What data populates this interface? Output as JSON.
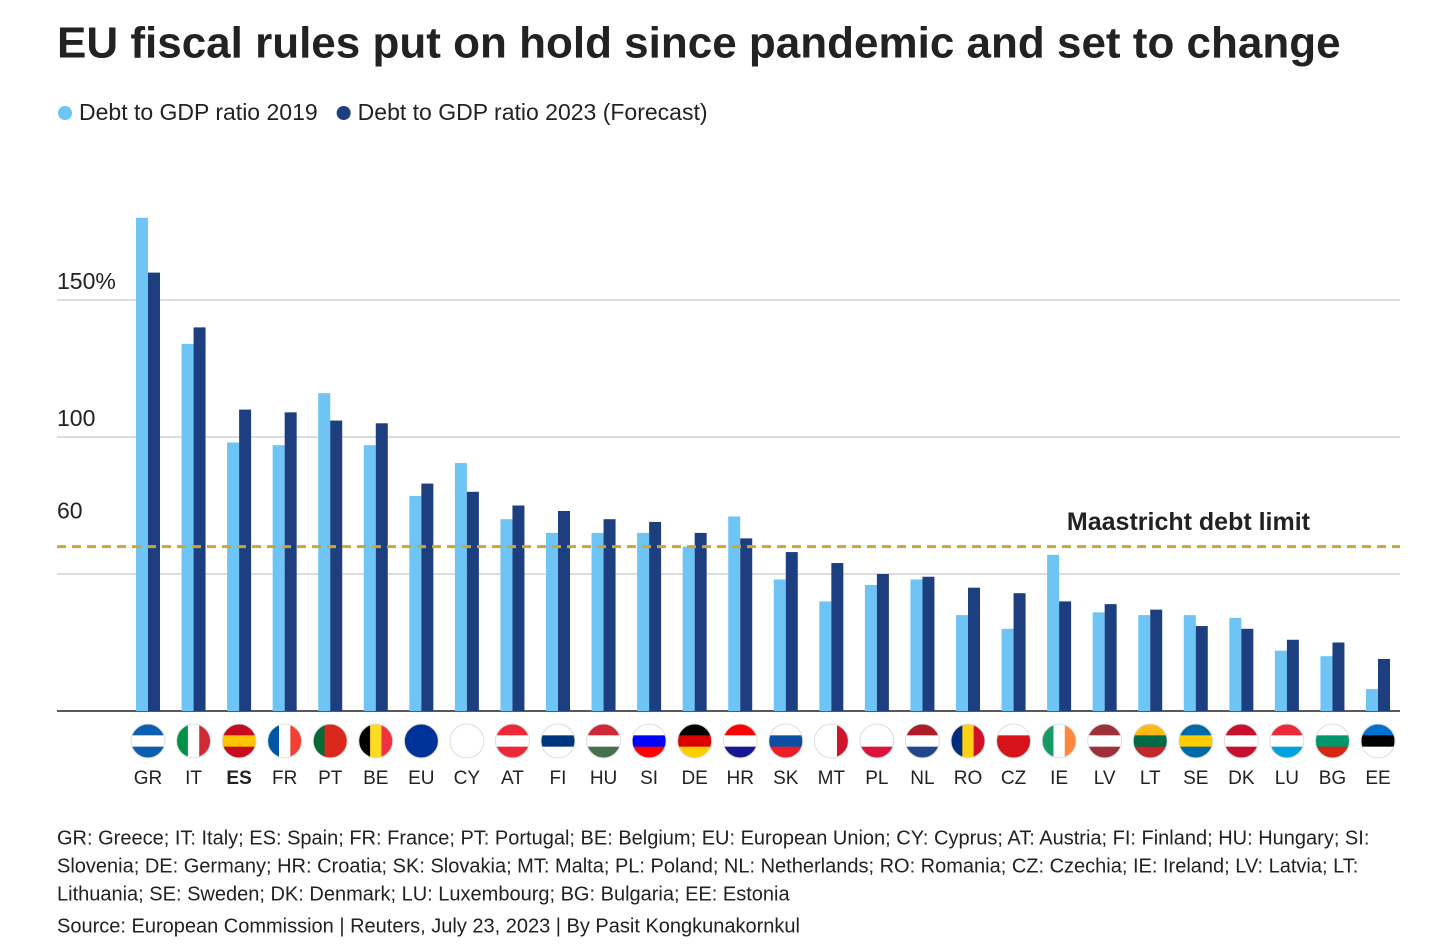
{
  "chart_data": {
    "type": "bar",
    "title": "EU fiscal rules put on hold since pandemic and set to change",
    "categories": [
      "GR",
      "IT",
      "ES",
      "FR",
      "PT",
      "BE",
      "EU",
      "CY",
      "AT",
      "FI",
      "HU",
      "SI",
      "DE",
      "HR",
      "SK",
      "MT",
      "PL",
      "NL",
      "RO",
      "CZ",
      "IE",
      "LV",
      "LT",
      "SE",
      "DK",
      "LU",
      "BG",
      "EE"
    ],
    "highlight_category": "ES",
    "series": [
      {
        "name": "Debt to GDP ratio 2019",
        "color": "#6ec4f5",
        "values": [
          180,
          134,
          98,
          97,
          116,
          97,
          78.5,
          90.5,
          70,
          65,
          65,
          65,
          60,
          71,
          48,
          40,
          46,
          48,
          35,
          30,
          57,
          36,
          35,
          35,
          34,
          22,
          20,
          8
        ]
      },
      {
        "name": "Debt to GDP ratio 2023 (Forecast)",
        "color": "#1d3f80",
        "values": [
          160,
          140,
          110,
          109,
          106,
          105,
          83,
          80,
          75,
          73,
          70,
          69,
          65,
          63,
          58,
          54,
          50,
          49,
          45,
          43,
          40,
          39,
          37,
          31,
          30,
          26,
          25,
          19
        ]
      }
    ],
    "ylim": [
      0,
      190
    ],
    "yticks": [
      {
        "value": 150,
        "label": "150%"
      },
      100
    ],
    "grid_values": [
      50,
      100,
      150
    ],
    "grid": true,
    "reference_line": {
      "value": 60,
      "label": "Maastricht debt limit",
      "color": "#c9a53a"
    },
    "footnote": [
      "GR: Greece; IT: Italy; ES: Spain; FR: France; PT: Portugal; BE: Belgium; EU: European Union; CY: Cyprus; AT: Austria; FI: Finland; HU: Hungary; SI:",
      "Slovenia; DE: Germany; HR: Croatia; SK: Slovakia; MT: Malta; PL: Poland; NL: Netherlands; RO: Romania; CZ: Czechia; IE: Ireland; LV: Latvia; LT:",
      "Lithuania; SE: Sweden; DK: Denmark; LU: Luxembourg; BG: Bulgaria; EE: Estonia"
    ],
    "source": "Source: European Commission | Reuters, July 23, 2023 | By Pasit Kongkunakornkul"
  }
}
